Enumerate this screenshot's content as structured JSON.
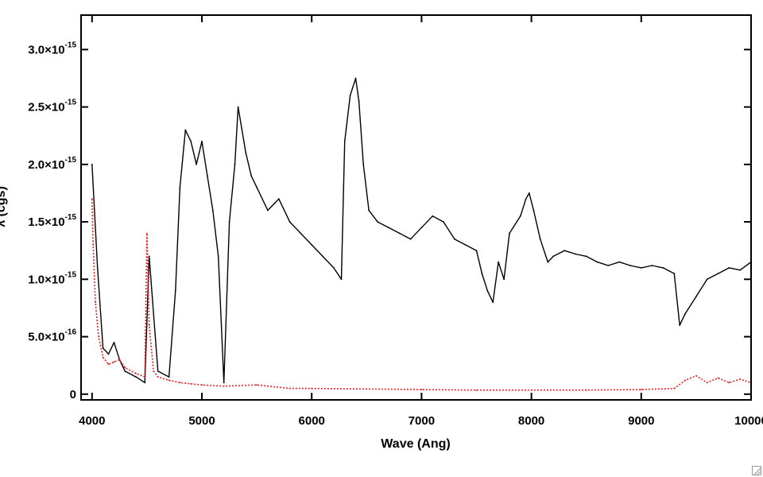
{
  "chart_data": {
    "type": "line",
    "xlabel": "Wave (Ang)",
    "ylabel": "",
    "ylabel_fragment": "λ (cgs)",
    "xlim": [
      3900,
      10000
    ],
    "ylim": [
      -5e-17,
      3.3e-15
    ],
    "x_ticks": [
      {
        "value": 4000,
        "label": "4000"
      },
      {
        "value": 5000,
        "label": "5000"
      },
      {
        "value": 6000,
        "label": "6000"
      },
      {
        "value": 7000,
        "label": "7000"
      },
      {
        "value": 8000,
        "label": "8000"
      },
      {
        "value": 9000,
        "label": "9000"
      },
      {
        "value": 10000,
        "label": "10000"
      }
    ],
    "y_ticks": [
      {
        "value": 0,
        "mant": "0",
        "exp": ""
      },
      {
        "value": 5e-16,
        "mant": "5.0×10",
        "exp": "-16"
      },
      {
        "value": 1e-15,
        "mant": "1.0×10",
        "exp": "-15"
      },
      {
        "value": 1.5e-15,
        "mant": "1.5×10",
        "exp": "-15"
      },
      {
        "value": 2e-15,
        "mant": "2.0×10",
        "exp": "-15"
      },
      {
        "value": 2.5e-15,
        "mant": "2.5×10",
        "exp": "-15"
      },
      {
        "value": 3e-15,
        "mant": "3.0×10",
        "exp": "-15"
      }
    ],
    "series": [
      {
        "color": "#000000",
        "style": "solid",
        "points": [
          [
            4000,
            2e-15
          ],
          [
            4050,
            1.1e-15
          ],
          [
            4100,
            4e-16
          ],
          [
            4150,
            3.5e-16
          ],
          [
            4200,
            4.5e-16
          ],
          [
            4250,
            3e-16
          ],
          [
            4300,
            2e-16
          ],
          [
            4400,
            1.5e-16
          ],
          [
            4480,
            1e-16
          ],
          [
            4520,
            1.2e-15
          ],
          [
            4600,
            2e-16
          ],
          [
            4700,
            1.5e-16
          ],
          [
            4760,
            9e-16
          ],
          [
            4800,
            1.8e-15
          ],
          [
            4850,
            2.3e-15
          ],
          [
            4900,
            2.2e-15
          ],
          [
            4950,
            2e-15
          ],
          [
            5000,
            2.2e-15
          ],
          [
            5050,
            1.9e-15
          ],
          [
            5100,
            1.6e-15
          ],
          [
            5150,
            1.2e-15
          ],
          [
            5200,
            1e-16
          ],
          [
            5250,
            1.5e-15
          ],
          [
            5300,
            2e-15
          ],
          [
            5330,
            2.5e-15
          ],
          [
            5400,
            2.1e-15
          ],
          [
            5450,
            1.9e-15
          ],
          [
            5500,
            1.8e-15
          ],
          [
            5600,
            1.6e-15
          ],
          [
            5700,
            1.7e-15
          ],
          [
            5800,
            1.5e-15
          ],
          [
            5900,
            1.4e-15
          ],
          [
            6000,
            1.3e-15
          ],
          [
            6100,
            1.2e-15
          ],
          [
            6200,
            1.1e-15
          ],
          [
            6270,
            1e-15
          ],
          [
            6300,
            2.2e-15
          ],
          [
            6350,
            2.6e-15
          ],
          [
            6400,
            2.75e-15
          ],
          [
            6430,
            2.55e-15
          ],
          [
            6470,
            2e-15
          ],
          [
            6520,
            1.6e-15
          ],
          [
            6600,
            1.5e-15
          ],
          [
            6700,
            1.45e-15
          ],
          [
            6800,
            1.4e-15
          ],
          [
            6900,
            1.35e-15
          ],
          [
            7000,
            1.45e-15
          ],
          [
            7100,
            1.55e-15
          ],
          [
            7200,
            1.5e-15
          ],
          [
            7300,
            1.35e-15
          ],
          [
            7400,
            1.3e-15
          ],
          [
            7500,
            1.25e-15
          ],
          [
            7550,
            1.05e-15
          ],
          [
            7600,
            9e-16
          ],
          [
            7650,
            8e-16
          ],
          [
            7700,
            1.15e-15
          ],
          [
            7750,
            1e-15
          ],
          [
            7800,
            1.4e-15
          ],
          [
            7900,
            1.55e-15
          ],
          [
            7950,
            1.7e-15
          ],
          [
            7980,
            1.75e-15
          ],
          [
            8020,
            1.6e-15
          ],
          [
            8080,
            1.35e-15
          ],
          [
            8150,
            1.15e-15
          ],
          [
            8200,
            1.2e-15
          ],
          [
            8300,
            1.25e-15
          ],
          [
            8400,
            1.22e-15
          ],
          [
            8500,
            1.2e-15
          ],
          [
            8600,
            1.15e-15
          ],
          [
            8700,
            1.12e-15
          ],
          [
            8800,
            1.15e-15
          ],
          [
            8900,
            1.12e-15
          ],
          [
            9000,
            1.1e-15
          ],
          [
            9100,
            1.12e-15
          ],
          [
            9200,
            1.1e-15
          ],
          [
            9300,
            1.05e-15
          ],
          [
            9350,
            6e-16
          ],
          [
            9400,
            7e-16
          ],
          [
            9500,
            8.5e-16
          ],
          [
            9600,
            1e-15
          ],
          [
            9700,
            1.05e-15
          ],
          [
            9800,
            1.1e-15
          ],
          [
            9900,
            1.08e-15
          ],
          [
            10000,
            1.15e-15
          ]
        ]
      },
      {
        "color": "#e02020",
        "style": "dotted",
        "points": [
          [
            4000,
            1.7e-15
          ],
          [
            4010,
            1.3e-15
          ],
          [
            4030,
            8e-16
          ],
          [
            4060,
            5e-16
          ],
          [
            4100,
            3.2e-16
          ],
          [
            4150,
            2.6e-16
          ],
          [
            4200,
            2.8e-16
          ],
          [
            4250,
            3e-16
          ],
          [
            4300,
            2.3e-16
          ],
          [
            4400,
            1.8e-16
          ],
          [
            4480,
            1.5e-16
          ],
          [
            4500,
            1.4e-15
          ],
          [
            4520,
            6e-16
          ],
          [
            4560,
            2e-16
          ],
          [
            4600,
            1.5e-16
          ],
          [
            4700,
            1.2e-16
          ],
          [
            4800,
            1e-16
          ],
          [
            4900,
            9e-17
          ],
          [
            5000,
            8e-17
          ],
          [
            5200,
            7e-17
          ],
          [
            5500,
            8e-17
          ],
          [
            5800,
            5e-17
          ],
          [
            6000,
            5e-17
          ],
          [
            6500,
            4.5e-17
          ],
          [
            7000,
            4e-17
          ],
          [
            7500,
            3.5e-17
          ],
          [
            8000,
            3.5e-17
          ],
          [
            8500,
            3.5e-17
          ],
          [
            9000,
            4e-17
          ],
          [
            9300,
            5e-17
          ],
          [
            9400,
            1.2e-16
          ],
          [
            9500,
            1.6e-16
          ],
          [
            9600,
            1e-16
          ],
          [
            9700,
            1.4e-16
          ],
          [
            9800,
            1e-16
          ],
          [
            9900,
            1.3e-16
          ],
          [
            10000,
            1e-16
          ]
        ]
      }
    ]
  }
}
